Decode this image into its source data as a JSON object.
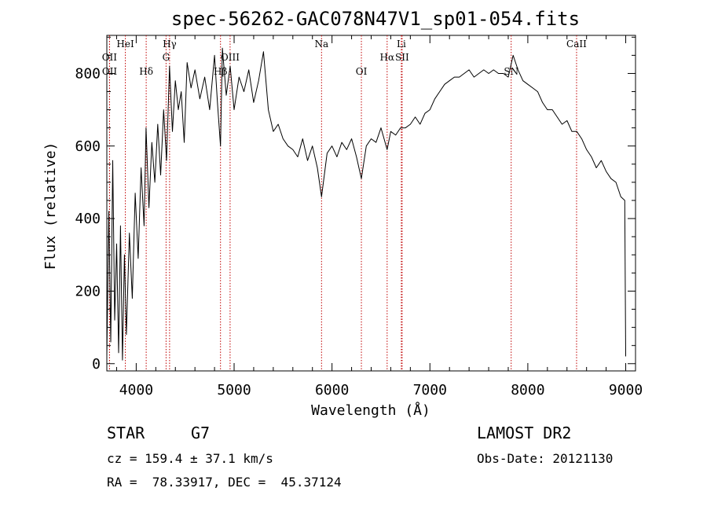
{
  "header": {
    "title": "spec-56262-GAC078N47V1_sp01-054.fits"
  },
  "footer": {
    "object_class": "STAR",
    "subclass": "G7",
    "survey": "LAMOST DR2",
    "redshift": "cz = 159.4 ± 37.1 km/s",
    "obs_date": "Obs-Date: 20121130",
    "coords": "RA =  78.33917, DEC =  45.37124"
  },
  "chart_data": {
    "type": "line",
    "title": "spec-56262-GAC078N47V1_sp01-054.fits",
    "xlabel": "Wavelength (Å)",
    "ylabel": "Flux (relative)",
    "xlim": [
      3700,
      9100
    ],
    "ylim": [
      -20,
      905
    ],
    "xticks": [
      4000,
      5000,
      6000,
      7000,
      8000,
      9000
    ],
    "yticks": [
      0,
      200,
      400,
      600,
      800
    ],
    "grid": false,
    "line_color": "#000000",
    "marker_color": "#c00000",
    "spectrum": {
      "x": [
        3700,
        3720,
        3740,
        3760,
        3780,
        3800,
        3820,
        3840,
        3860,
        3880,
        3900,
        3930,
        3960,
        3990,
        4020,
        4050,
        4080,
        4100,
        4130,
        4160,
        4190,
        4220,
        4250,
        4280,
        4310,
        4340,
        4370,
        4400,
        4430,
        4460,
        4490,
        4520,
        4560,
        4600,
        4650,
        4700,
        4750,
        4800,
        4830,
        4861,
        4880,
        4920,
        4960,
        5000,
        5050,
        5100,
        5150,
        5200,
        5250,
        5300,
        5350,
        5400,
        5450,
        5500,
        5550,
        5600,
        5650,
        5700,
        5750,
        5800,
        5850,
        5893,
        5950,
        6000,
        6050,
        6100,
        6150,
        6200,
        6250,
        6300,
        6350,
        6400,
        6450,
        6500,
        6563,
        6600,
        6650,
        6700,
        6750,
        6800,
        6850,
        6900,
        6950,
        7000,
        7050,
        7100,
        7150,
        7200,
        7250,
        7300,
        7350,
        7400,
        7450,
        7500,
        7550,
        7600,
        7650,
        7700,
        7750,
        7800,
        7850,
        7900,
        7950,
        8000,
        8050,
        8100,
        8150,
        8200,
        8250,
        8300,
        8350,
        8400,
        8450,
        8500,
        8550,
        8600,
        8650,
        8700,
        8750,
        8800,
        8850,
        8900,
        8950,
        8990,
        9000
      ],
      "y": [
        20,
        420,
        60,
        560,
        120,
        330,
        30,
        380,
        10,
        300,
        80,
        360,
        180,
        470,
        290,
        540,
        380,
        650,
        430,
        610,
        500,
        660,
        520,
        700,
        560,
        820,
        640,
        780,
        700,
        750,
        610,
        830,
        760,
        810,
        730,
        790,
        700,
        850,
        720,
        600,
        870,
        740,
        820,
        700,
        790,
        750,
        810,
        720,
        780,
        860,
        700,
        640,
        660,
        620,
        600,
        590,
        570,
        620,
        560,
        600,
        540,
        460,
        580,
        600,
        570,
        610,
        590,
        620,
        570,
        510,
        600,
        620,
        610,
        650,
        590,
        640,
        630,
        650,
        650,
        660,
        680,
        660,
        690,
        700,
        730,
        750,
        770,
        780,
        790,
        790,
        800,
        810,
        790,
        800,
        810,
        800,
        810,
        800,
        800,
        790,
        850,
        810,
        780,
        770,
        760,
        750,
        720,
        700,
        700,
        680,
        660,
        670,
        640,
        640,
        620,
        590,
        570,
        540,
        560,
        530,
        510,
        500,
        460,
        450,
        20
      ]
    },
    "line_markers": [
      {
        "label": "OII",
        "x": 3727,
        "row": 1
      },
      {
        "label": "OII",
        "x": 3728,
        "row": 2
      },
      {
        "label": "HeI",
        "x": 3889,
        "row": 0
      },
      {
        "label": "Hδ",
        "x": 4102,
        "row": 2
      },
      {
        "label": "Hγ",
        "x": 4341,
        "row": 0
      },
      {
        "label": "G",
        "x": 4305,
        "row": 1
      },
      {
        "label": "Hβ",
        "x": 4861,
        "row": 2
      },
      {
        "label": "OIII",
        "x": 4959,
        "row": 1
      },
      {
        "label": "Na",
        "x": 5893,
        "row": 0
      },
      {
        "label": "OI",
        "x": 6300,
        "row": 2
      },
      {
        "label": "Hα",
        "x": 6563,
        "row": 1
      },
      {
        "label": "SII",
        "x": 6716,
        "row": 1
      },
      {
        "label": "Li",
        "x": 6708,
        "row": 0
      },
      {
        "label": "SN",
        "x": 7830,
        "row": 2
      },
      {
        "label": "CaII",
        "x": 8498,
        "row": 0
      }
    ]
  }
}
